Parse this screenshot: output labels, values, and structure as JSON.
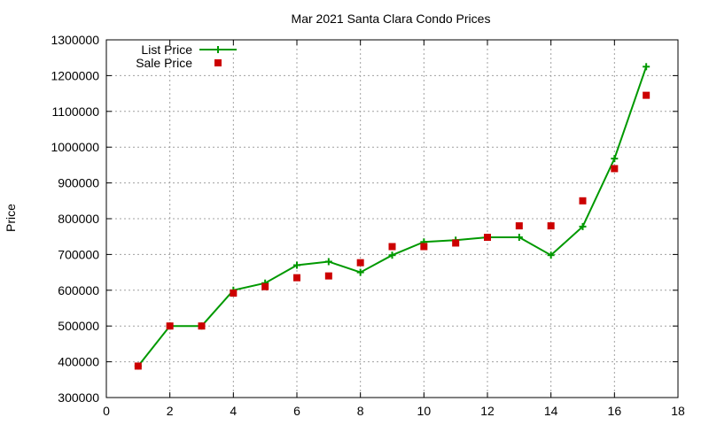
{
  "chart_data": {
    "type": "line",
    "title": "Mar 2021 Santa Clara Condo Prices",
    "xlabel": "",
    "ylabel": "Price",
    "xlim": [
      0,
      18
    ],
    "ylim": [
      300000,
      1300000
    ],
    "x_ticks": [
      0,
      2,
      4,
      6,
      8,
      10,
      12,
      14,
      16,
      18
    ],
    "y_ticks": [
      300000,
      400000,
      500000,
      600000,
      700000,
      800000,
      900000,
      1000000,
      1100000,
      1200000,
      1300000
    ],
    "x_tick_labels": [
      "0",
      "2",
      "4",
      "6",
      "8",
      "10",
      "12",
      "14",
      "16",
      "18"
    ],
    "y_tick_labels": [
      "300000",
      "400000",
      "500000",
      "600000",
      "700000",
      "800000",
      "900000",
      "1000000",
      "1100000",
      "1200000",
      "1300000"
    ],
    "grid": true,
    "legend_position": "top-left",
    "series": [
      {
        "name": "List Price",
        "style": "lines+points",
        "marker": "plus",
        "color": "#009900",
        "x": [
          1,
          2,
          3,
          4,
          5,
          6,
          7,
          8,
          9,
          10,
          11,
          12,
          13,
          14,
          15,
          16,
          17
        ],
        "y": [
          388000,
          500000,
          500000,
          600000,
          620000,
          670000,
          680000,
          650000,
          698000,
          735000,
          740000,
          748000,
          748000,
          698000,
          778000,
          968000,
          1225000
        ]
      },
      {
        "name": "Sale Price",
        "style": "points",
        "marker": "square",
        "color": "#cc0000",
        "x": [
          1,
          2,
          3,
          4,
          5,
          6,
          7,
          8,
          9,
          10,
          11,
          12,
          13,
          14,
          15,
          16,
          17
        ],
        "y": [
          388000,
          500000,
          500000,
          592000,
          610000,
          635000,
          640000,
          677000,
          722000,
          722000,
          732000,
          748000,
          780000,
          780000,
          850000,
          940000,
          1145000
        ]
      }
    ]
  }
}
